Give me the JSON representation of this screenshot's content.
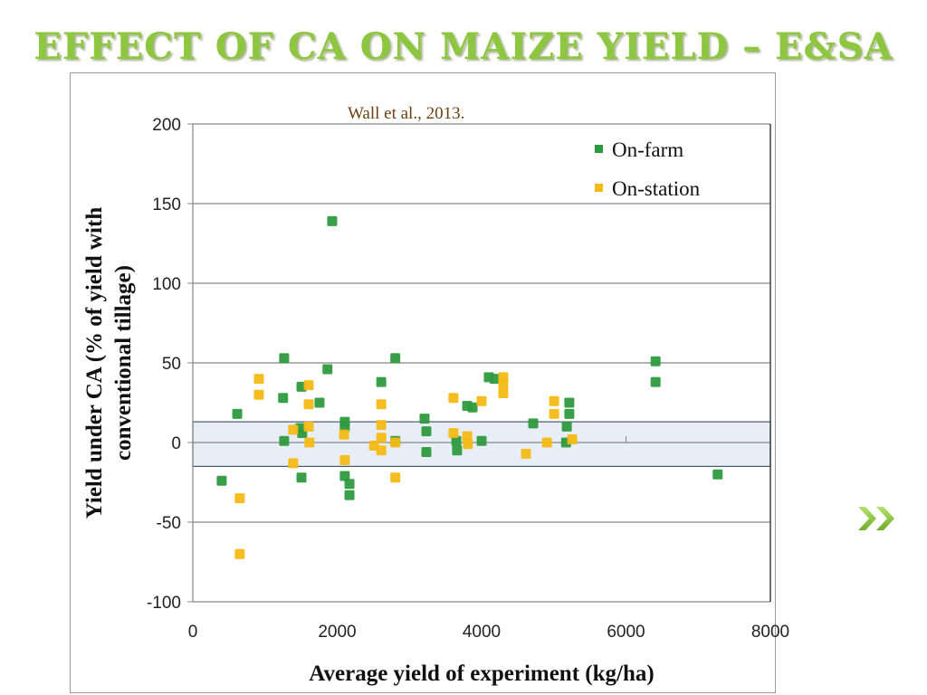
{
  "slide": {
    "title": "EFFECT OF CA ON MAIZE YIELD – E&SA",
    "citation": "Wall et al., 2013.",
    "next_icon": "double-chevron-right-icon",
    "colors": {
      "title": "#8dc63f",
      "citation": "#6b3f10",
      "on_farm": "#2e9a3e",
      "on_station": "#f5b914",
      "band": "#e8eef7"
    }
  },
  "chart_data": {
    "type": "scatter",
    "title": "",
    "xlabel": "Average yield of experiment (kg/ha)",
    "ylabel_line1": "Yield under CA (% of yield with",
    "ylabel_line2": "conventional tillage)",
    "xlim": [
      0,
      8000
    ],
    "ylim": [
      -100,
      200
    ],
    "xticks": [
      "0",
      "2000",
      "4000",
      "6000",
      "8000"
    ],
    "yticks": [
      "200",
      "150",
      "100",
      "50",
      "0",
      "-50",
      "-100"
    ],
    "grid": "horizontal",
    "legend_position": "top-right",
    "band": {
      "label": "",
      "y_low": -15,
      "y_high": 13
    },
    "series": [
      {
        "name": "On-farm",
        "color": "#2e9a3e",
        "points": [
          [
            400,
            -24
          ],
          [
            615,
            18
          ],
          [
            1265,
            53
          ],
          [
            1250,
            28
          ],
          [
            1265,
            1
          ],
          [
            1505,
            35
          ],
          [
            1490,
            9
          ],
          [
            1515,
            6
          ],
          [
            1505,
            -22
          ],
          [
            1755,
            25
          ],
          [
            1865,
            46
          ],
          [
            1930,
            139
          ],
          [
            2105,
            13
          ],
          [
            2105,
            10
          ],
          [
            2105,
            -21
          ],
          [
            2170,
            -26
          ],
          [
            2170,
            -33
          ],
          [
            2610,
            38
          ],
          [
            2805,
            53
          ],
          [
            2805,
            1
          ],
          [
            3210,
            15
          ],
          [
            3235,
            7
          ],
          [
            3235,
            -6
          ],
          [
            3650,
            1
          ],
          [
            3660,
            -5
          ],
          [
            3800,
            23
          ],
          [
            3875,
            22
          ],
          [
            4000,
            1
          ],
          [
            4100,
            41
          ],
          [
            4180,
            40
          ],
          [
            4715,
            12
          ],
          [
            5170,
            0
          ],
          [
            5180,
            10
          ],
          [
            5215,
            25
          ],
          [
            5215,
            18
          ],
          [
            6410,
            51
          ],
          [
            6410,
            38
          ],
          [
            7270,
            -20
          ]
        ]
      },
      {
        "name": "On-station",
        "color": "#f5b914",
        "points": [
          [
            650,
            -35
          ],
          [
            650,
            -70
          ],
          [
            915,
            40
          ],
          [
            915,
            30
          ],
          [
            1390,
            8
          ],
          [
            1390,
            -13
          ],
          [
            1605,
            36
          ],
          [
            1605,
            24
          ],
          [
            1605,
            10
          ],
          [
            1615,
            0
          ],
          [
            2095,
            5
          ],
          [
            2105,
            -11
          ],
          [
            2510,
            -2
          ],
          [
            2610,
            24
          ],
          [
            2610,
            11
          ],
          [
            2610,
            3
          ],
          [
            2610,
            -5
          ],
          [
            2805,
            0
          ],
          [
            2805,
            -22
          ],
          [
            3610,
            28
          ],
          [
            3610,
            6
          ],
          [
            3800,
            4
          ],
          [
            3810,
            -1
          ],
          [
            4000,
            26
          ],
          [
            4300,
            41
          ],
          [
            4300,
            37
          ],
          [
            4300,
            31
          ],
          [
            4615,
            -7
          ],
          [
            4905,
            0
          ],
          [
            5005,
            26
          ],
          [
            5005,
            18
          ],
          [
            5255,
            2
          ]
        ]
      }
    ]
  }
}
